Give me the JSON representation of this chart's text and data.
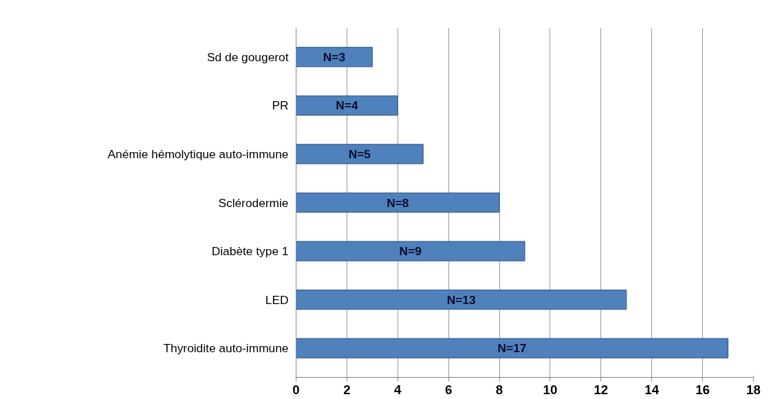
{
  "chart_data": {
    "type": "bar",
    "orientation": "horizontal",
    "categories": [
      "Sd de gougerot",
      "PR",
      "Anémie hémolytique auto-immune",
      "Sclérodermie",
      "Diabète type 1",
      "LED",
      "Thyroidite auto-immune"
    ],
    "values": [
      3,
      4,
      5,
      8,
      9,
      13,
      17
    ],
    "value_labels": [
      "N=3",
      "N=4",
      "N=5",
      "N=8",
      "N=9",
      "N=13",
      "N=17"
    ],
    "color": "#4f81bd",
    "xlim": [
      0,
      18
    ],
    "xticks": [
      0,
      2,
      4,
      6,
      8,
      10,
      12,
      14,
      16,
      18
    ],
    "grid": "x"
  }
}
